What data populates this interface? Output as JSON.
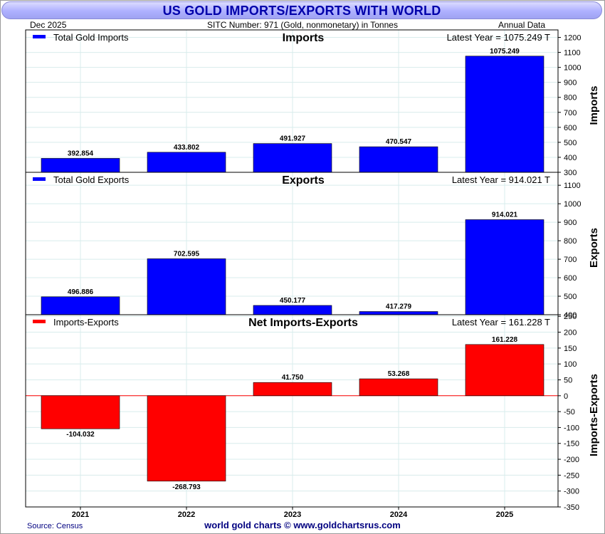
{
  "title": "US GOLD IMPORTS/EXPORTS WITH WORLD",
  "date_label": "Dec  2025",
  "sitc_label": "SITC Number: 971 (Gold, nonmonetary) in Tonnes",
  "frequency_label": "Annual Data",
  "source": "Source: Census",
  "credit": "world gold charts © www.goldchartsrus.com",
  "colors": {
    "imports": "#0000ff",
    "exports": "#0000ff",
    "net": "#ff0000",
    "grid": "#d8ecec"
  },
  "chart_data": [
    {
      "type": "bar",
      "title": "Imports",
      "ylabel": "Imports",
      "legend": "Total Gold Imports",
      "latest_label": "Latest Year = 1075.249 T",
      "categories": [
        "2021",
        "2022",
        "2023",
        "2024",
        "2025"
      ],
      "values": [
        392.854,
        433.802,
        491.927,
        470.547,
        1075.249
      ],
      "value_labels": [
        "392.854",
        "433.802",
        "491.927",
        "470.547",
        "1075.249"
      ],
      "ylim": [
        300,
        1250
      ],
      "yticks": [
        "300",
        "400",
        "500",
        "600",
        "700",
        "800",
        "900",
        "1000",
        "1100",
        "1200"
      ]
    },
    {
      "type": "bar",
      "title": "Exports",
      "ylabel": "Exports",
      "legend": "Total Gold Exports",
      "latest_label": "Latest Year = 914.021 T",
      "categories": [
        "2021",
        "2022",
        "2023",
        "2024",
        "2025"
      ],
      "values": [
        496.886,
        702.595,
        450.177,
        417.279,
        914.021
      ],
      "value_labels": [
        "496.886",
        "702.595",
        "450.177",
        "417.279",
        "914.021"
      ],
      "ylim": [
        400,
        1170
      ],
      "yticks": [
        "400",
        "500",
        "600",
        "700",
        "800",
        "900",
        "1000",
        "1100"
      ]
    },
    {
      "type": "bar",
      "title": "Net Imports-Exports",
      "ylabel": "Imports-Exports",
      "legend": "Imports-Exports",
      "latest_label": "Latest Year = 161.228 T",
      "categories": [
        "2021",
        "2022",
        "2023",
        "2024",
        "2025"
      ],
      "values": [
        -104.032,
        -268.793,
        41.75,
        53.268,
        161.228
      ],
      "value_labels": [
        "-104.032",
        "-268.793",
        "41.750",
        "53.268",
        "161.228"
      ],
      "ylim": [
        -350,
        255
      ],
      "yticks": [
        "-350",
        "-300",
        "-250",
        "-200",
        "-150",
        "-100",
        "-50",
        "0",
        "50",
        "100",
        "150",
        "200",
        "250"
      ]
    }
  ]
}
